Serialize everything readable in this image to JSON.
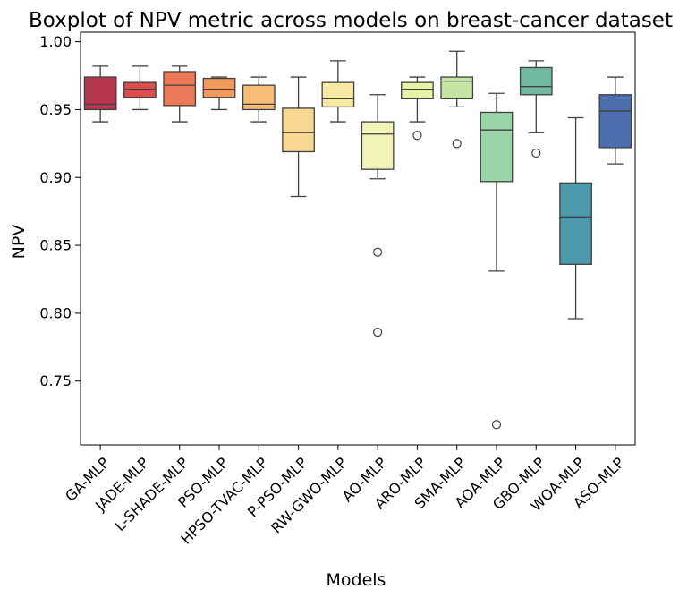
{
  "chart_data": {
    "type": "boxplot",
    "title": "Boxplot of NPV metric across models on breast-cancer dataset",
    "xlabel": "Models",
    "ylabel": "NPV",
    "ylim": [
      0.703,
      1.007
    ],
    "yticks": [
      "0.75",
      "0.80",
      "0.85",
      "0.90",
      "0.95",
      "1.00"
    ],
    "grid": false,
    "legend": "none",
    "series": [
      {
        "category": "GA-MLP",
        "color": "#b5344e",
        "whisker_low": 0.941,
        "q1": 0.95,
        "median": 0.954,
        "q3": 0.974,
        "whisker_high": 0.982,
        "outliers": []
      },
      {
        "category": "JADE-MLP",
        "color": "#db4e4c",
        "whisker_low": 0.95,
        "q1": 0.959,
        "median": 0.965,
        "q3": 0.97,
        "whisker_high": 0.982,
        "outliers": []
      },
      {
        "category": "L-SHADE-MLP",
        "color": "#ea7a57",
        "whisker_low": 0.941,
        "q1": 0.953,
        "median": 0.968,
        "q3": 0.978,
        "whisker_high": 0.982,
        "outliers": []
      },
      {
        "category": "PSO-MLP",
        "color": "#f49a5e",
        "whisker_low": 0.95,
        "q1": 0.959,
        "median": 0.965,
        "q3": 0.973,
        "whisker_high": 0.974,
        "outliers": []
      },
      {
        "category": "HPSO-TVAC-MLP",
        "color": "#f7bd78",
        "whisker_low": 0.941,
        "q1": 0.95,
        "median": 0.954,
        "q3": 0.968,
        "whisker_high": 0.974,
        "outliers": []
      },
      {
        "category": "P-PSO-MLP",
        "color": "#f8d892",
        "whisker_low": 0.886,
        "q1": 0.919,
        "median": 0.933,
        "q3": 0.951,
        "whisker_high": 0.974,
        "outliers": []
      },
      {
        "category": "RW-GWO-MLP",
        "color": "#f8eaa5",
        "whisker_low": 0.941,
        "q1": 0.952,
        "median": 0.958,
        "q3": 0.97,
        "whisker_high": 0.986,
        "outliers": []
      },
      {
        "category": "AO-MLP",
        "color": "#f1f4b7",
        "whisker_low": 0.899,
        "q1": 0.906,
        "median": 0.932,
        "q3": 0.941,
        "whisker_high": 0.961,
        "outliers": [
          0.845,
          0.786
        ]
      },
      {
        "category": "ARO-MLP",
        "color": "#e5f4a8",
        "whisker_low": 0.941,
        "q1": 0.958,
        "median": 0.965,
        "q3": 0.97,
        "whisker_high": 0.974,
        "outliers": [
          0.931
        ]
      },
      {
        "category": "SMA-MLP",
        "color": "#c5e5a3",
        "whisker_low": 0.952,
        "q1": 0.958,
        "median": 0.971,
        "q3": 0.974,
        "whisker_high": 0.993,
        "outliers": [
          0.925
        ]
      },
      {
        "category": "AOA-MLP",
        "color": "#9bd4a6",
        "whisker_low": 0.831,
        "q1": 0.897,
        "median": 0.935,
        "q3": 0.948,
        "whisker_high": 0.962,
        "outliers": [
          0.718
        ]
      },
      {
        "category": "GBO-MLP",
        "color": "#70b8a2",
        "whisker_low": 0.933,
        "q1": 0.961,
        "median": 0.967,
        "q3": 0.981,
        "whisker_high": 0.986,
        "outliers": [
          0.918
        ]
      },
      {
        "category": "WOA-MLP",
        "color": "#4e98ac",
        "whisker_low": 0.796,
        "q1": 0.836,
        "median": 0.871,
        "q3": 0.896,
        "whisker_high": 0.944,
        "outliers": []
      },
      {
        "category": "ASO-MLP",
        "color": "#4a6eae",
        "whisker_low": 0.91,
        "q1": 0.922,
        "median": 0.949,
        "q3": 0.961,
        "whisker_high": 0.974,
        "outliers": []
      }
    ]
  }
}
